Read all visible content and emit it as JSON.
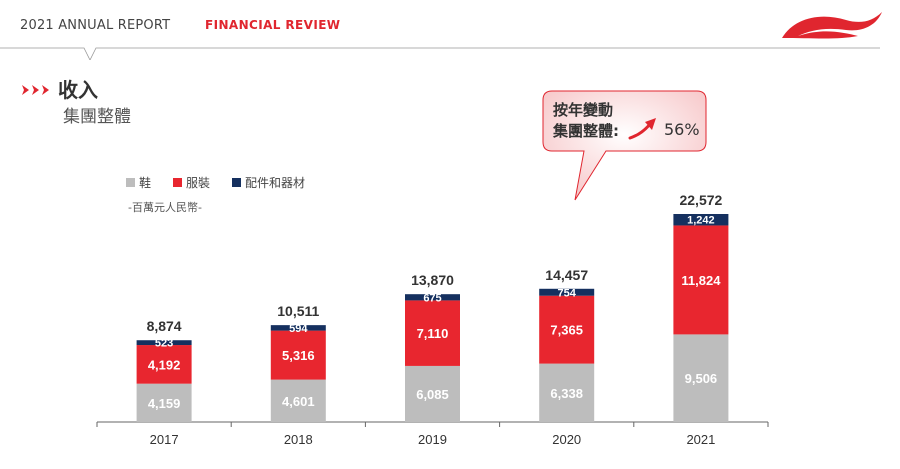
{
  "header": {
    "report": "2021 ANNUAL REPORT",
    "section": "FINANCIAL REVIEW"
  },
  "logo": {
    "icon": "li-ning-logo-icon",
    "color": "#e0262f"
  },
  "page": {
    "title": "收入",
    "subtitle": "集團整體"
  },
  "callout": {
    "line1": "按年變動",
    "line2": "集團整體:",
    "change": "56%",
    "icon": "trend-up-arrow-icon"
  },
  "legend": [
    {
      "label": "鞋",
      "color": "#bdbdbd"
    },
    {
      "label": "服裝",
      "color": "#e8262f"
    },
    {
      "label": "配件和器材",
      "color": "#15305f"
    }
  ],
  "unit_note": "-百萬元人民幣-",
  "chart_data": {
    "type": "bar",
    "stacked": true,
    "title": "收入 集團整體",
    "ylabel": "百萬元人民幣",
    "ylim": [
      0,
      24000
    ],
    "categories": [
      "2017",
      "2018",
      "2019",
      "2020",
      "2021"
    ],
    "series": [
      {
        "name": "鞋",
        "color": "#bdbdbd",
        "values": [
          4159,
          4601,
          6085,
          6338,
          9506
        ],
        "labels": [
          "4,159",
          "4,601",
          "6,085",
          "6,338",
          "9,506"
        ]
      },
      {
        "name": "服裝",
        "color": "#e8262f",
        "values": [
          4192,
          5316,
          7110,
          7365,
          11824
        ],
        "labels": [
          "4,192",
          "5,316",
          "7,110",
          "7,365",
          "11,824"
        ]
      },
      {
        "name": "配件和器材",
        "color": "#15305f",
        "values": [
          523,
          594,
          675,
          754,
          1242
        ],
        "labels": [
          "523",
          "594",
          "675",
          "754",
          "1,242"
        ]
      }
    ],
    "totals": [
      8874,
      10511,
      13870,
      14457,
      22572
    ],
    "total_labels": [
      "8,874",
      "10,511",
      "13,870",
      "14,457",
      "22,572"
    ]
  }
}
